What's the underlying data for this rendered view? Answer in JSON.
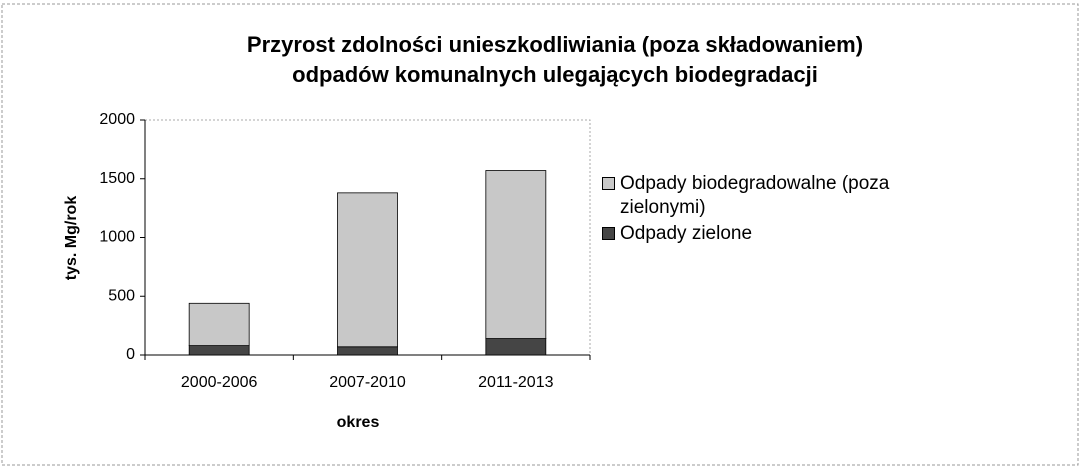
{
  "chart_data": {
    "type": "stacked-bar",
    "title": [
      "Przyrost zdolności unieszkodliwiania (poza składowaniem)",
      "odpadów komunalnych ulegających biodegradacji"
    ],
    "x_label": "okres",
    "y_label": "tys. Mg/rok",
    "categories": [
      "2000-2006",
      "2007-2010",
      "2011-2013"
    ],
    "series": [
      {
        "name": "Odpady biodegradowalne (poza zielonymi)",
        "color": "#c8c8c8",
        "values": [
          360,
          1310,
          1430
        ]
      },
      {
        "name": "Odpady zielone",
        "color": "#454545",
        "values": [
          80,
          70,
          140
        ]
      }
    ],
    "ylim": [
      0,
      2000
    ],
    "yticks": [
      0,
      500,
      1000,
      1500,
      2000
    ],
    "legend": "right"
  }
}
